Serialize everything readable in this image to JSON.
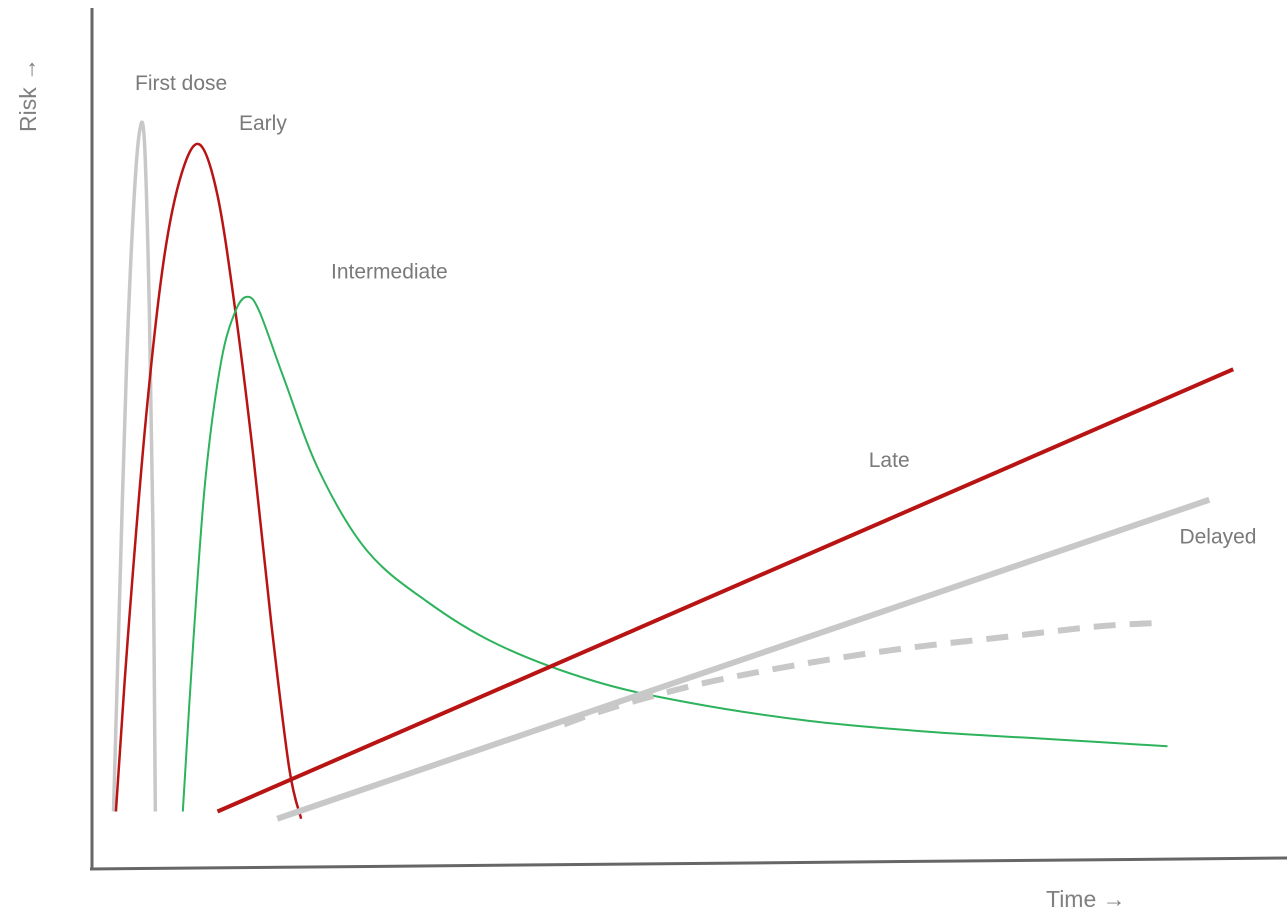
{
  "chart_data": {
    "type": "line",
    "title": "",
    "xlabel": "Time →",
    "ylabel": "Risk →",
    "xlim": [
      0,
      100
    ],
    "ylim": [
      0,
      100
    ],
    "grid": false,
    "legend": "none",
    "axis_color": "#666666",
    "series": [
      {
        "name": "First dose",
        "color": "#c8c8c8",
        "style": "solid",
        "points": [
          [
            1.8,
            6
          ],
          [
            2.3,
            35
          ],
          [
            2.9,
            68
          ],
          [
            3.5,
            90
          ],
          [
            4.0,
            100
          ],
          [
            4.4,
            98
          ],
          [
            4.8,
            75
          ],
          [
            5.1,
            45
          ],
          [
            5.3,
            6
          ]
        ]
      },
      {
        "name": "Early",
        "color": "#b81414",
        "style": "solid",
        "points": [
          [
            2.0,
            6
          ],
          [
            3.0,
            30
          ],
          [
            4.5,
            60
          ],
          [
            6.0,
            82
          ],
          [
            7.5,
            94
          ],
          [
            9.0,
            98
          ],
          [
            10.5,
            91
          ],
          [
            12.0,
            75
          ],
          [
            13.5,
            55
          ],
          [
            15.0,
            32
          ],
          [
            16.5,
            12
          ],
          [
            17.5,
            5
          ]
        ]
      },
      {
        "name": "Intermediate",
        "color": "#2db35c",
        "style": "solid",
        "points": [
          [
            7.6,
            6
          ],
          [
            8.5,
            30
          ],
          [
            9.5,
            52
          ],
          [
            10.8,
            68
          ],
          [
            12.0,
            75
          ],
          [
            13.0,
            77
          ],
          [
            14.0,
            75
          ],
          [
            16.0,
            66
          ],
          [
            19.0,
            53
          ],
          [
            23.0,
            42
          ],
          [
            28.0,
            35
          ],
          [
            34.0,
            29
          ],
          [
            42.0,
            24
          ],
          [
            50.0,
            21
          ],
          [
            60.0,
            18.5
          ],
          [
            70.0,
            17
          ],
          [
            80.0,
            16
          ],
          [
            90.0,
            15
          ]
        ]
      },
      {
        "name": "Late",
        "color": "#b81414",
        "style": "solid",
        "points": [
          [
            10.5,
            6
          ],
          [
            95.5,
            67
          ]
        ]
      },
      {
        "name": "Delayed",
        "color": "#c8c8c8",
        "style": "solid",
        "points": [
          [
            15.5,
            5
          ],
          [
            93.5,
            49
          ]
        ]
      },
      {
        "name": "",
        "color": "#c8c8c8",
        "style": "dashed",
        "points": [
          [
            39.5,
            18
          ],
          [
            42.0,
            19.5
          ],
          [
            46.0,
            21.5
          ],
          [
            52.0,
            24
          ],
          [
            60.0,
            26.5
          ],
          [
            68.0,
            28.5
          ],
          [
            76.0,
            30
          ],
          [
            84.0,
            31.5
          ],
          [
            89.0,
            32
          ]
        ]
      }
    ],
    "annotations": [
      {
        "text": "First dose",
        "x": 3.6,
        "y": 105.5
      },
      {
        "text": "Early",
        "x": 12.3,
        "y": 100
      },
      {
        "text": "Intermediate",
        "x": 20.0,
        "y": 79.5
      },
      {
        "text": "Late",
        "x": 65.0,
        "y": 53.5
      },
      {
        "text": "Delayed",
        "x": 91.0,
        "y": 43
      }
    ]
  }
}
